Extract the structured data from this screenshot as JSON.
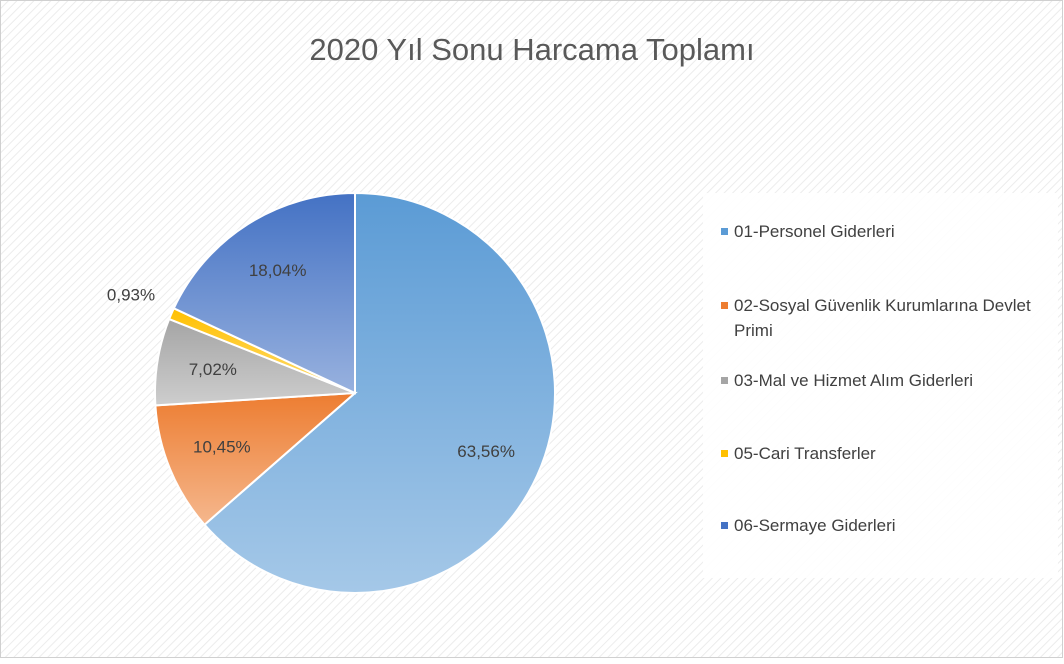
{
  "chart_data": {
    "type": "pie",
    "title": "2020 Yıl Sonu  Harcama Toplamı",
    "categories": [
      "01-Personel Giderleri",
      "02-Sosyal Güvenlik Kurumlarına Devlet Primi",
      "03-Mal ve Hizmet Alım Giderleri",
      "05-Cari Transferler",
      "06-Sermaye Giderleri"
    ],
    "values": [
      63.56,
      10.45,
      7.02,
      0.93,
      18.04
    ],
    "value_labels": [
      "63,56%",
      "10,45%",
      "7,02%",
      "0,93%",
      "18,04%"
    ],
    "colors": [
      "#5b9bd5",
      "#ed7d31",
      "#a5a5a5",
      "#ffc000",
      "#4472c4"
    ],
    "legend": "right"
  }
}
